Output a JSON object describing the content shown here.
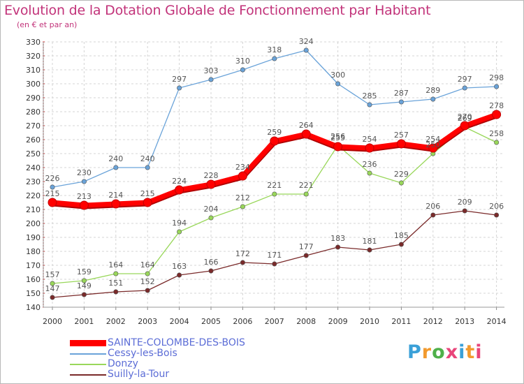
{
  "title": "Evolution de la Dotation Globale de Fonctionnement par Habitant",
  "subtitle": "(en € et par an)",
  "logo": {
    "text": "Proxiti",
    "colors": [
      "#3aa0d8",
      "#f29a2e",
      "#4fb04a",
      "#e8457a",
      "#3aa0d8",
      "#f29a2e",
      "#e8457a"
    ]
  },
  "chart_data": {
    "type": "line",
    "title": "Evolution de la Dotation Globale de Fonctionnement par Habitant",
    "subtitle": "(en € et par an)",
    "x": [
      "2000",
      "2001",
      "2002",
      "2003",
      "2004",
      "2005",
      "2006",
      "2007",
      "2008",
      "2009",
      "2010",
      "2011",
      "2012",
      "2013",
      "2014"
    ],
    "ylim": [
      140,
      330
    ],
    "yticks": [
      140,
      150,
      160,
      170,
      180,
      190,
      200,
      210,
      220,
      230,
      240,
      250,
      260,
      270,
      280,
      290,
      300,
      310,
      320,
      330
    ],
    "grid": true,
    "legend_position": "bottom-left",
    "series": [
      {
        "name": "SAINTE-COLOMBE-DES-BOIS",
        "color": "#ff0000",
        "values": [
          215,
          213,
          214,
          215,
          224,
          228,
          234,
          259,
          264,
          255,
          254,
          257,
          254,
          270,
          278
        ]
      },
      {
        "name": "Cessy-les-Bois",
        "color": "#6aa3d9",
        "values": [
          226,
          230,
          240,
          240,
          297,
          303,
          310,
          318,
          324,
          300,
          285,
          287,
          289,
          297,
          298
        ]
      },
      {
        "name": "Donzy",
        "color": "#99d75a",
        "values": [
          157,
          159,
          164,
          164,
          194,
          204,
          212,
          221,
          221,
          256,
          236,
          229,
          250,
          269,
          258
        ]
      },
      {
        "name": "Suilly-la-Tour",
        "color": "#7a2a2a",
        "values": [
          147,
          149,
          151,
          152,
          163,
          166,
          172,
          171,
          177,
          183,
          181,
          185,
          206,
          209,
          206
        ]
      }
    ]
  }
}
